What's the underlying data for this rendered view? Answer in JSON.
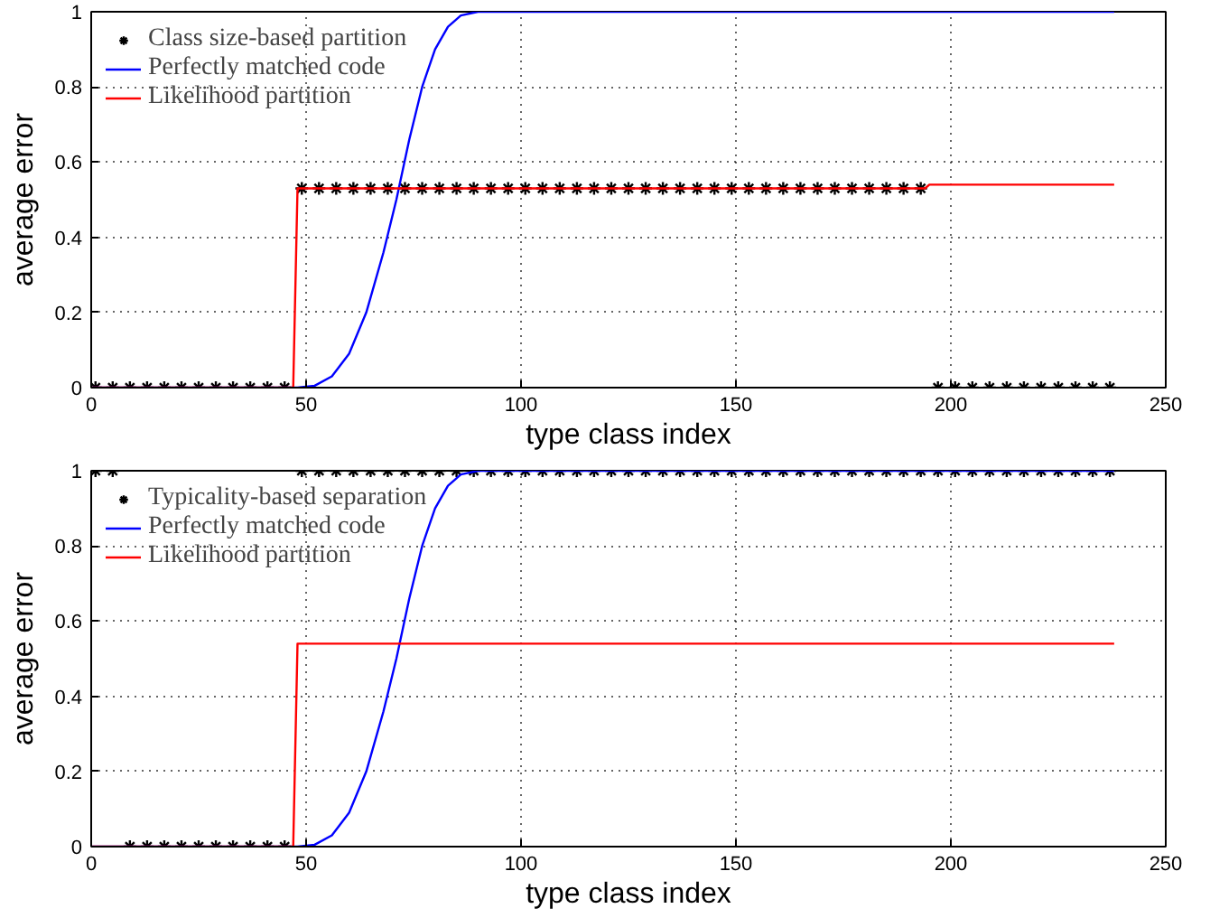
{
  "chart_data": [
    {
      "type": "line",
      "xlabel": "type class index",
      "ylabel": "average error",
      "xlim": [
        0,
        250
      ],
      "ylim": [
        0,
        1
      ],
      "xticks": [
        0,
        50,
        100,
        150,
        200,
        250
      ],
      "yticks": [
        0,
        0.2,
        0.4,
        0.6,
        0.8,
        1
      ],
      "grid": true,
      "legend": "top left",
      "series": [
        {
          "name": "Class size-based partition",
          "type": "scatter",
          "marker": "cross",
          "color": "#000000",
          "x": [
            1,
            5,
            9,
            13,
            17,
            21,
            25,
            29,
            33,
            37,
            41,
            45,
            49,
            53,
            57,
            61,
            65,
            69,
            73,
            77,
            81,
            85,
            89,
            93,
            97,
            101,
            105,
            109,
            113,
            117,
            121,
            125,
            129,
            133,
            137,
            141,
            145,
            149,
            153,
            157,
            161,
            165,
            169,
            173,
            177,
            181,
            185,
            189,
            193,
            197,
            201,
            205,
            209,
            213,
            217,
            221,
            225,
            229,
            233,
            237
          ],
          "values": [
            0,
            0,
            0,
            0,
            0,
            0,
            0,
            0,
            0,
            0,
            0,
            0,
            0.53,
            0.53,
            0.53,
            0.53,
            0.53,
            0.53,
            0.53,
            0.53,
            0.53,
            0.53,
            0.53,
            0.53,
            0.53,
            0.53,
            0.53,
            0.53,
            0.53,
            0.53,
            0.53,
            0.53,
            0.53,
            0.53,
            0.53,
            0.53,
            0.53,
            0.53,
            0.53,
            0.53,
            0.53,
            0.53,
            0.53,
            0.53,
            0.53,
            0.53,
            0.53,
            0.53,
            0.53,
            0,
            0,
            0,
            0,
            0,
            0,
            0,
            0,
            0,
            0,
            0
          ]
        },
        {
          "name": "Perfectly matched code",
          "color": "#0000ff",
          "x": [
            0,
            48,
            52,
            56,
            60,
            64,
            68,
            71,
            74,
            77,
            80,
            83,
            86,
            90,
            238
          ],
          "values": [
            0,
            0,
            0.005,
            0.03,
            0.09,
            0.2,
            0.36,
            0.5,
            0.66,
            0.8,
            0.9,
            0.96,
            0.99,
            1,
            1
          ]
        },
        {
          "name": "Likelihood partition",
          "color": "#ff0000",
          "x": [
            0,
            47,
            48,
            194,
            195,
            238
          ],
          "values": [
            0,
            0,
            0.53,
            0.53,
            0.54,
            0.54
          ]
        }
      ]
    },
    {
      "type": "line",
      "xlabel": "type class index",
      "ylabel": "average error",
      "xlim": [
        0,
        250
      ],
      "ylim": [
        0,
        1
      ],
      "xticks": [
        0,
        50,
        100,
        150,
        200,
        250
      ],
      "yticks": [
        0,
        0.2,
        0.4,
        0.6,
        0.8,
        1
      ],
      "grid": true,
      "legend": "top left",
      "series": [
        {
          "name": "Typicality-based separation",
          "type": "scatter",
          "marker": "cross",
          "color": "#000000",
          "x": [
            1,
            5,
            9,
            13,
            17,
            21,
            25,
            29,
            33,
            37,
            41,
            45,
            49,
            53,
            57,
            61,
            65,
            69,
            73,
            77,
            81,
            85,
            89,
            93,
            97,
            101,
            105,
            109,
            113,
            117,
            121,
            125,
            129,
            133,
            137,
            141,
            145,
            149,
            153,
            157,
            161,
            165,
            169,
            173,
            177,
            181,
            185,
            189,
            193,
            197,
            201,
            205,
            209,
            213,
            217,
            221,
            225,
            229,
            233,
            237
          ],
          "values": [
            1,
            1,
            0,
            0,
            0,
            0,
            0,
            0,
            0,
            0,
            0,
            0,
            1,
            1,
            1,
            1,
            1,
            1,
            1,
            1,
            1,
            1,
            1,
            1,
            1,
            1,
            1,
            1,
            1,
            1,
            1,
            1,
            1,
            1,
            1,
            1,
            1,
            1,
            1,
            1,
            1,
            1,
            1,
            1,
            1,
            1,
            1,
            1,
            1,
            1,
            1,
            1,
            1,
            1,
            1,
            1,
            1,
            1,
            1,
            1
          ]
        },
        {
          "name": "Perfectly matched code",
          "color": "#0000ff",
          "x": [
            0,
            48,
            52,
            56,
            60,
            64,
            68,
            71,
            74,
            77,
            80,
            83,
            86,
            90,
            238
          ],
          "values": [
            0,
            0,
            0.005,
            0.03,
            0.09,
            0.2,
            0.36,
            0.5,
            0.66,
            0.8,
            0.9,
            0.96,
            0.99,
            1,
            1
          ]
        },
        {
          "name": "Likelihood partition",
          "color": "#ff0000",
          "x": [
            0,
            47,
            48,
            238
          ],
          "values": [
            0,
            0,
            0.54,
            0.54
          ]
        }
      ]
    }
  ]
}
